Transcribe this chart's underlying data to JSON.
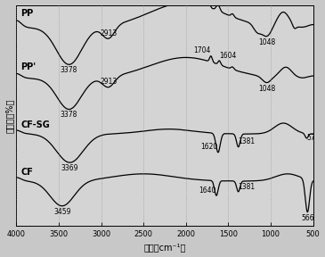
{
  "xlabel": "波数（cm⁻¹）",
  "ylabel": "透光率（%）",
  "background": "#d8d8d8",
  "xticks": [
    4000,
    3500,
    3000,
    2500,
    2000,
    1500,
    1000,
    500
  ],
  "curve_lw": 0.9,
  "ann_fs": 5.5,
  "label_fs": 7
}
